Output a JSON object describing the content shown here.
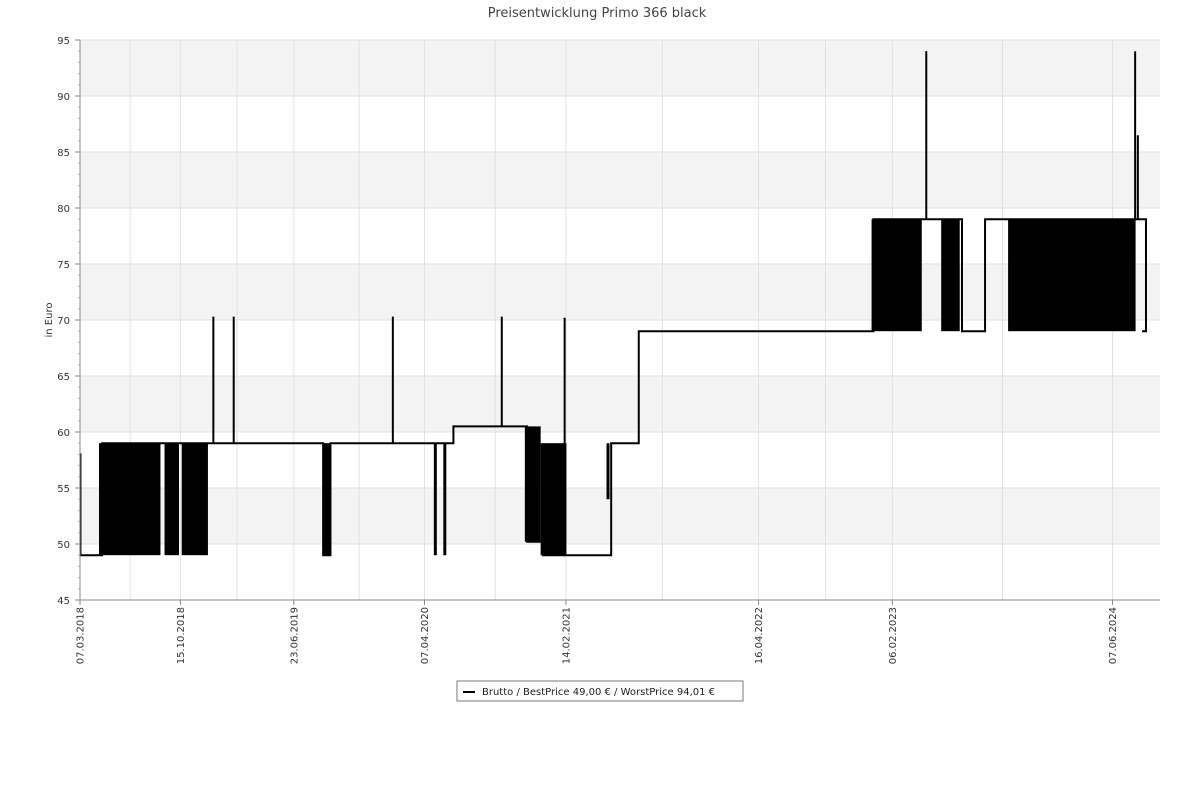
{
  "chart_data": {
    "type": "line",
    "title": "Preisentwicklung Primo 366 black",
    "ylabel": "in Euro",
    "xlabel": "",
    "ylim": [
      45,
      95
    ],
    "xlim": [
      "2018-03-07",
      "2024-09-20"
    ],
    "y_ticks": [
      45,
      50,
      55,
      60,
      65,
      70,
      75,
      80,
      85,
      90,
      95
    ],
    "x_tick_labels": [
      "07.03.2018",
      "15.10.2018",
      "23.06.2019",
      "07.04.2020",
      "14.02.2021",
      "16.04.2022",
      "06.02.2023",
      "07.06.2024"
    ],
    "x_tick_dates": [
      "2018-03-07",
      "2018-10-15",
      "2019-06-23",
      "2020-04-07",
      "2021-02-14",
      "2022-04-16",
      "2023-02-06",
      "2024-06-07"
    ],
    "grid": true,
    "legend_placement": "bottom-center",
    "series": [
      {
        "name": "Brutto / BestPrice  49,00 € / WorstPrice  94,01 €",
        "color": "#000000",
        "baseline_steps": [
          {
            "date": "2018-03-07",
            "value": 58
          },
          {
            "date": "2018-03-08",
            "value": 49
          },
          {
            "date": "2018-04-25",
            "value": 59
          },
          {
            "date": "2019-08-27",
            "value": 49
          },
          {
            "date": "2019-09-12",
            "value": 59
          },
          {
            "date": "2020-06-10",
            "value": 60.5
          },
          {
            "date": "2020-11-20",
            "value": 50.2
          },
          {
            "date": "2020-12-25",
            "value": 49
          },
          {
            "date": "2021-05-25",
            "value": 59
          },
          {
            "date": "2021-07-25",
            "value": 69
          },
          {
            "date": "2022-12-26",
            "value": 79
          },
          {
            "date": "2023-04-15",
            "value": 79
          },
          {
            "date": "2023-07-10",
            "value": 69
          },
          {
            "date": "2023-08-30",
            "value": 79
          },
          {
            "date": "2024-08-20",
            "value": 69
          }
        ],
        "fluctuation_bands": [
          {
            "start": "2018-04-18",
            "end": "2018-09-01",
            "low": 49,
            "high": 59
          },
          {
            "start": "2018-09-10",
            "end": "2018-10-12",
            "low": 49,
            "high": 59
          },
          {
            "start": "2018-10-18",
            "end": "2018-12-15",
            "low": 49,
            "high": 59
          },
          {
            "start": "2019-08-25",
            "end": "2019-09-10",
            "low": 49,
            "high": 59
          },
          {
            "start": "2020-11-15",
            "end": "2020-12-20",
            "low": 50.2,
            "high": 60.5
          },
          {
            "start": "2020-12-20",
            "end": "2021-02-15",
            "low": 49,
            "high": 59
          },
          {
            "start": "2022-12-22",
            "end": "2023-04-12",
            "low": 69,
            "high": 79
          },
          {
            "start": "2023-05-25",
            "end": "2023-07-05",
            "low": 69,
            "high": 79
          },
          {
            "start": "2023-10-20",
            "end": "2024-07-28",
            "low": 69,
            "high": 79
          }
        ],
        "spikes": [
          {
            "date": "2018-12-27",
            "base": 59,
            "value": 70.3
          },
          {
            "date": "2019-02-10",
            "base": 59,
            "value": 70.3
          },
          {
            "date": "2020-01-28",
            "base": 59,
            "value": 70.3
          },
          {
            "date": "2020-09-25",
            "base": 60.5,
            "value": 70.3
          },
          {
            "date": "2021-02-11",
            "base": 49,
            "value": 70.2
          },
          {
            "date": "2023-04-22",
            "base": 79,
            "value": 94.01
          },
          {
            "date": "2024-07-27",
            "base": 79,
            "value": 94
          },
          {
            "date": "2024-08-02",
            "base": 79,
            "value": 86.5
          }
        ],
        "dips": [
          {
            "date": "2020-05-01",
            "base": 59,
            "value": 49
          },
          {
            "date": "2020-05-22",
            "base": 59,
            "value": 49
          },
          {
            "date": "2021-05-18",
            "base": 59,
            "value": 54
          }
        ]
      }
    ]
  }
}
